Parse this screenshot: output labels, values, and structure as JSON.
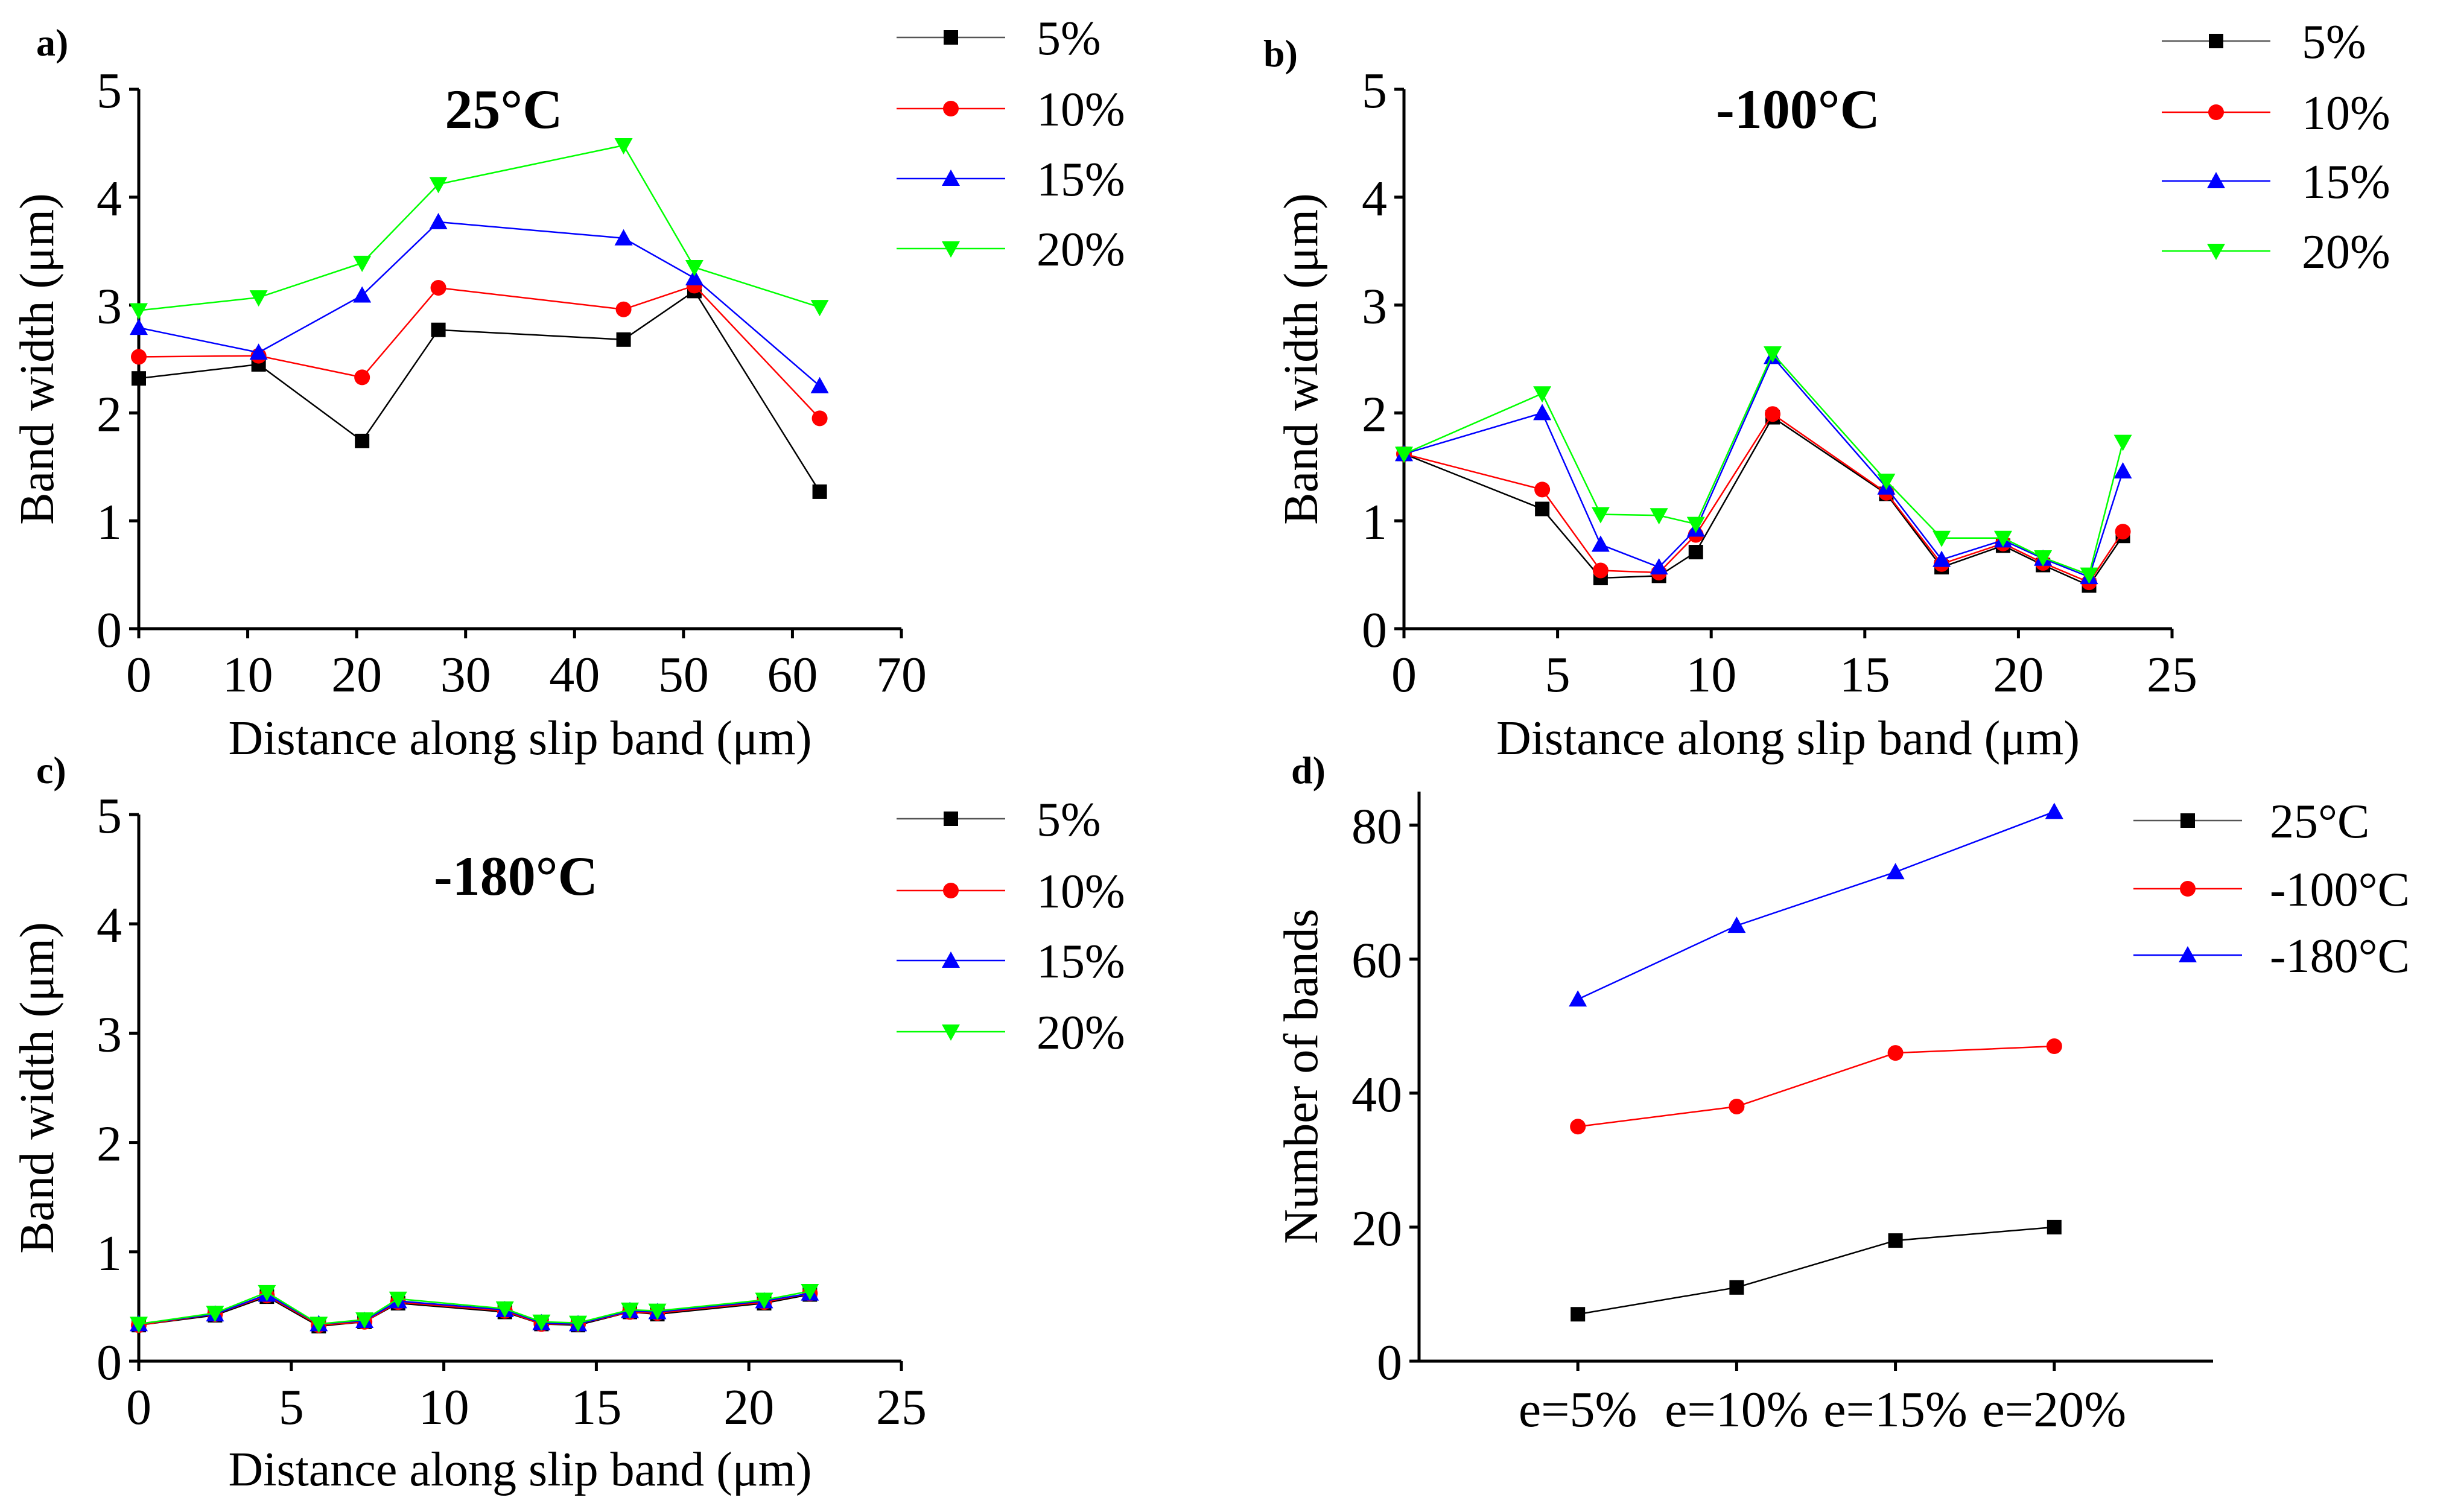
{
  "chart_data": [
    {
      "panel": "a)",
      "type": "line",
      "title": "25°C",
      "xlabel": "Distance along slip band (μm)",
      "ylabel": "Band width (μm)",
      "xlim": [
        0,
        70
      ],
      "ylim": [
        0,
        5
      ],
      "xticks": [
        0,
        10,
        20,
        30,
        40,
        50,
        60,
        70
      ],
      "yticks": [
        0,
        1,
        2,
        3,
        4,
        5
      ],
      "legend": "top-right",
      "series": [
        {
          "name": "5%",
          "marker": "square",
          "color": "#000000",
          "x": [
            0,
            11,
            20.5,
            27.5,
            44.5,
            51,
            62.5
          ],
          "y": [
            2.32,
            2.45,
            1.74,
            2.77,
            2.68,
            3.13,
            1.27
          ]
        },
        {
          "name": "10%",
          "marker": "circle",
          "color": "#ff0000",
          "x": [
            0,
            11,
            20.5,
            27.5,
            44.5,
            51,
            62.5
          ],
          "y": [
            2.52,
            2.53,
            2.33,
            3.16,
            2.96,
            3.18,
            1.95
          ]
        },
        {
          "name": "15%",
          "marker": "triangle-up",
          "color": "#0000ff",
          "x": [
            0,
            11,
            20.5,
            27.5,
            44.5,
            51,
            62.5
          ],
          "y": [
            2.79,
            2.56,
            3.09,
            3.77,
            3.62,
            3.25,
            2.25
          ]
        },
        {
          "name": "20%",
          "marker": "triangle-down",
          "color": "#00ff00",
          "x": [
            0,
            11,
            20.5,
            27.5,
            44.5,
            51,
            62.5
          ],
          "y": [
            2.95,
            3.07,
            3.39,
            4.12,
            4.48,
            3.35,
            2.98
          ]
        }
      ]
    },
    {
      "panel": "b)",
      "type": "line",
      "title": "-100°C",
      "xlabel": "Distance along slip band (μm)",
      "ylabel": "Band width (μm)",
      "xlim": [
        0,
        25
      ],
      "ylim": [
        0,
        5
      ],
      "xticks": [
        0,
        5,
        10,
        15,
        20,
        25
      ],
      "yticks": [
        0,
        1,
        2,
        3,
        4,
        5
      ],
      "legend": "top-right",
      "series": [
        {
          "name": "5%",
          "marker": "square",
          "color": "#000000",
          "x": [
            0,
            4.5,
            6.4,
            8.3,
            9.5,
            12,
            15.7,
            17.5,
            19.5,
            20.8,
            22.3,
            23.4
          ],
          "y": [
            1.62,
            1.11,
            0.47,
            0.49,
            0.71,
            1.96,
            1.25,
            0.57,
            0.77,
            0.59,
            0.4,
            0.86
          ]
        },
        {
          "name": "10%",
          "marker": "circle",
          "color": "#ff0000",
          "x": [
            0,
            4.5,
            6.4,
            8.3,
            9.5,
            12,
            15.7,
            17.5,
            19.5,
            20.8,
            22.3,
            23.4
          ],
          "y": [
            1.62,
            1.29,
            0.54,
            0.52,
            0.87,
            1.99,
            1.26,
            0.6,
            0.79,
            0.61,
            0.43,
            0.9
          ]
        },
        {
          "name": "15%",
          "marker": "triangle-up",
          "color": "#0000ff",
          "x": [
            0,
            4.5,
            6.4,
            8.3,
            9.5,
            12,
            15.7,
            17.5,
            19.5,
            20.8,
            22.3,
            23.4
          ],
          "y": [
            1.62,
            2.0,
            0.78,
            0.57,
            0.92,
            2.52,
            1.31,
            0.64,
            0.82,
            0.65,
            0.48,
            1.46
          ]
        },
        {
          "name": "20%",
          "marker": "triangle-down",
          "color": "#00ff00",
          "x": [
            0,
            4.5,
            6.4,
            8.3,
            9.5,
            12,
            15.7,
            17.5,
            19.5,
            20.8,
            22.3,
            23.4
          ],
          "y": [
            1.62,
            2.18,
            1.06,
            1.05,
            0.97,
            2.55,
            1.37,
            0.84,
            0.84,
            0.66,
            0.5,
            1.73
          ]
        }
      ]
    },
    {
      "panel": "c)",
      "type": "line",
      "title": "-180°C",
      "xlabel": "Distance along slip band (μm)",
      "ylabel": "Band width (μm)",
      "xlim": [
        0,
        25
      ],
      "ylim": [
        0,
        5
      ],
      "xticks": [
        0,
        5,
        10,
        15,
        20,
        25
      ],
      "yticks": [
        0,
        1,
        2,
        3,
        4,
        5
      ],
      "legend": "top-right",
      "series": [
        {
          "name": "5%",
          "marker": "square",
          "color": "#000000",
          "x": [
            0,
            2.5,
            4.2,
            5.9,
            7.4,
            8.5,
            12,
            13.2,
            14.4,
            16.1,
            17,
            20.5,
            22
          ],
          "y": [
            0.33,
            0.42,
            0.59,
            0.32,
            0.36,
            0.53,
            0.45,
            0.34,
            0.33,
            0.45,
            0.43,
            0.53,
            0.61
          ]
        },
        {
          "name": "10%",
          "marker": "circle",
          "color": "#ff0000",
          "x": [
            0,
            2.5,
            4.2,
            5.9,
            7.4,
            8.5,
            12,
            13.2,
            14.4,
            16.1,
            17,
            20.5,
            22
          ],
          "y": [
            0.33,
            0.43,
            0.6,
            0.33,
            0.36,
            0.54,
            0.46,
            0.34,
            0.34,
            0.45,
            0.44,
            0.54,
            0.62
          ]
        },
        {
          "name": "15%",
          "marker": "triangle-up",
          "color": "#0000ff",
          "x": [
            0,
            2.5,
            4.2,
            5.9,
            7.4,
            8.5,
            12,
            13.2,
            14.4,
            16.1,
            17,
            20.5,
            22
          ],
          "y": [
            0.34,
            0.43,
            0.61,
            0.34,
            0.37,
            0.55,
            0.47,
            0.35,
            0.34,
            0.46,
            0.45,
            0.55,
            0.62
          ]
        },
        {
          "name": "20%",
          "marker": "triangle-down",
          "color": "#00ff00",
          "x": [
            0,
            2.5,
            4.2,
            5.9,
            7.4,
            8.5,
            12,
            13.2,
            14.4,
            16.1,
            17,
            20.5,
            22
          ],
          "y": [
            0.34,
            0.44,
            0.63,
            0.34,
            0.38,
            0.57,
            0.48,
            0.36,
            0.35,
            0.47,
            0.46,
            0.56,
            0.64
          ]
        }
      ]
    },
    {
      "panel": "d)",
      "type": "line",
      "title": "",
      "xlabel": "",
      "ylabel": "Number of bands",
      "categories": [
        "e=5%",
        "e=10%",
        "e=15%",
        "e=20%"
      ],
      "ylim": [
        0,
        85
      ],
      "yticks": [
        0,
        20,
        40,
        60,
        80
      ],
      "legend": "top-right",
      "series": [
        {
          "name": "25°C",
          "marker": "square",
          "color": "#000000",
          "values": [
            7,
            11,
            18,
            20
          ]
        },
        {
          "name": "-100°C",
          "marker": "circle",
          "color": "#ff0000",
          "values": [
            35,
            38,
            46,
            47
          ]
        },
        {
          "name": "-180°C",
          "marker": "triangle-up",
          "color": "#0000ff",
          "values": [
            54,
            65,
            73,
            82
          ]
        }
      ]
    }
  ]
}
